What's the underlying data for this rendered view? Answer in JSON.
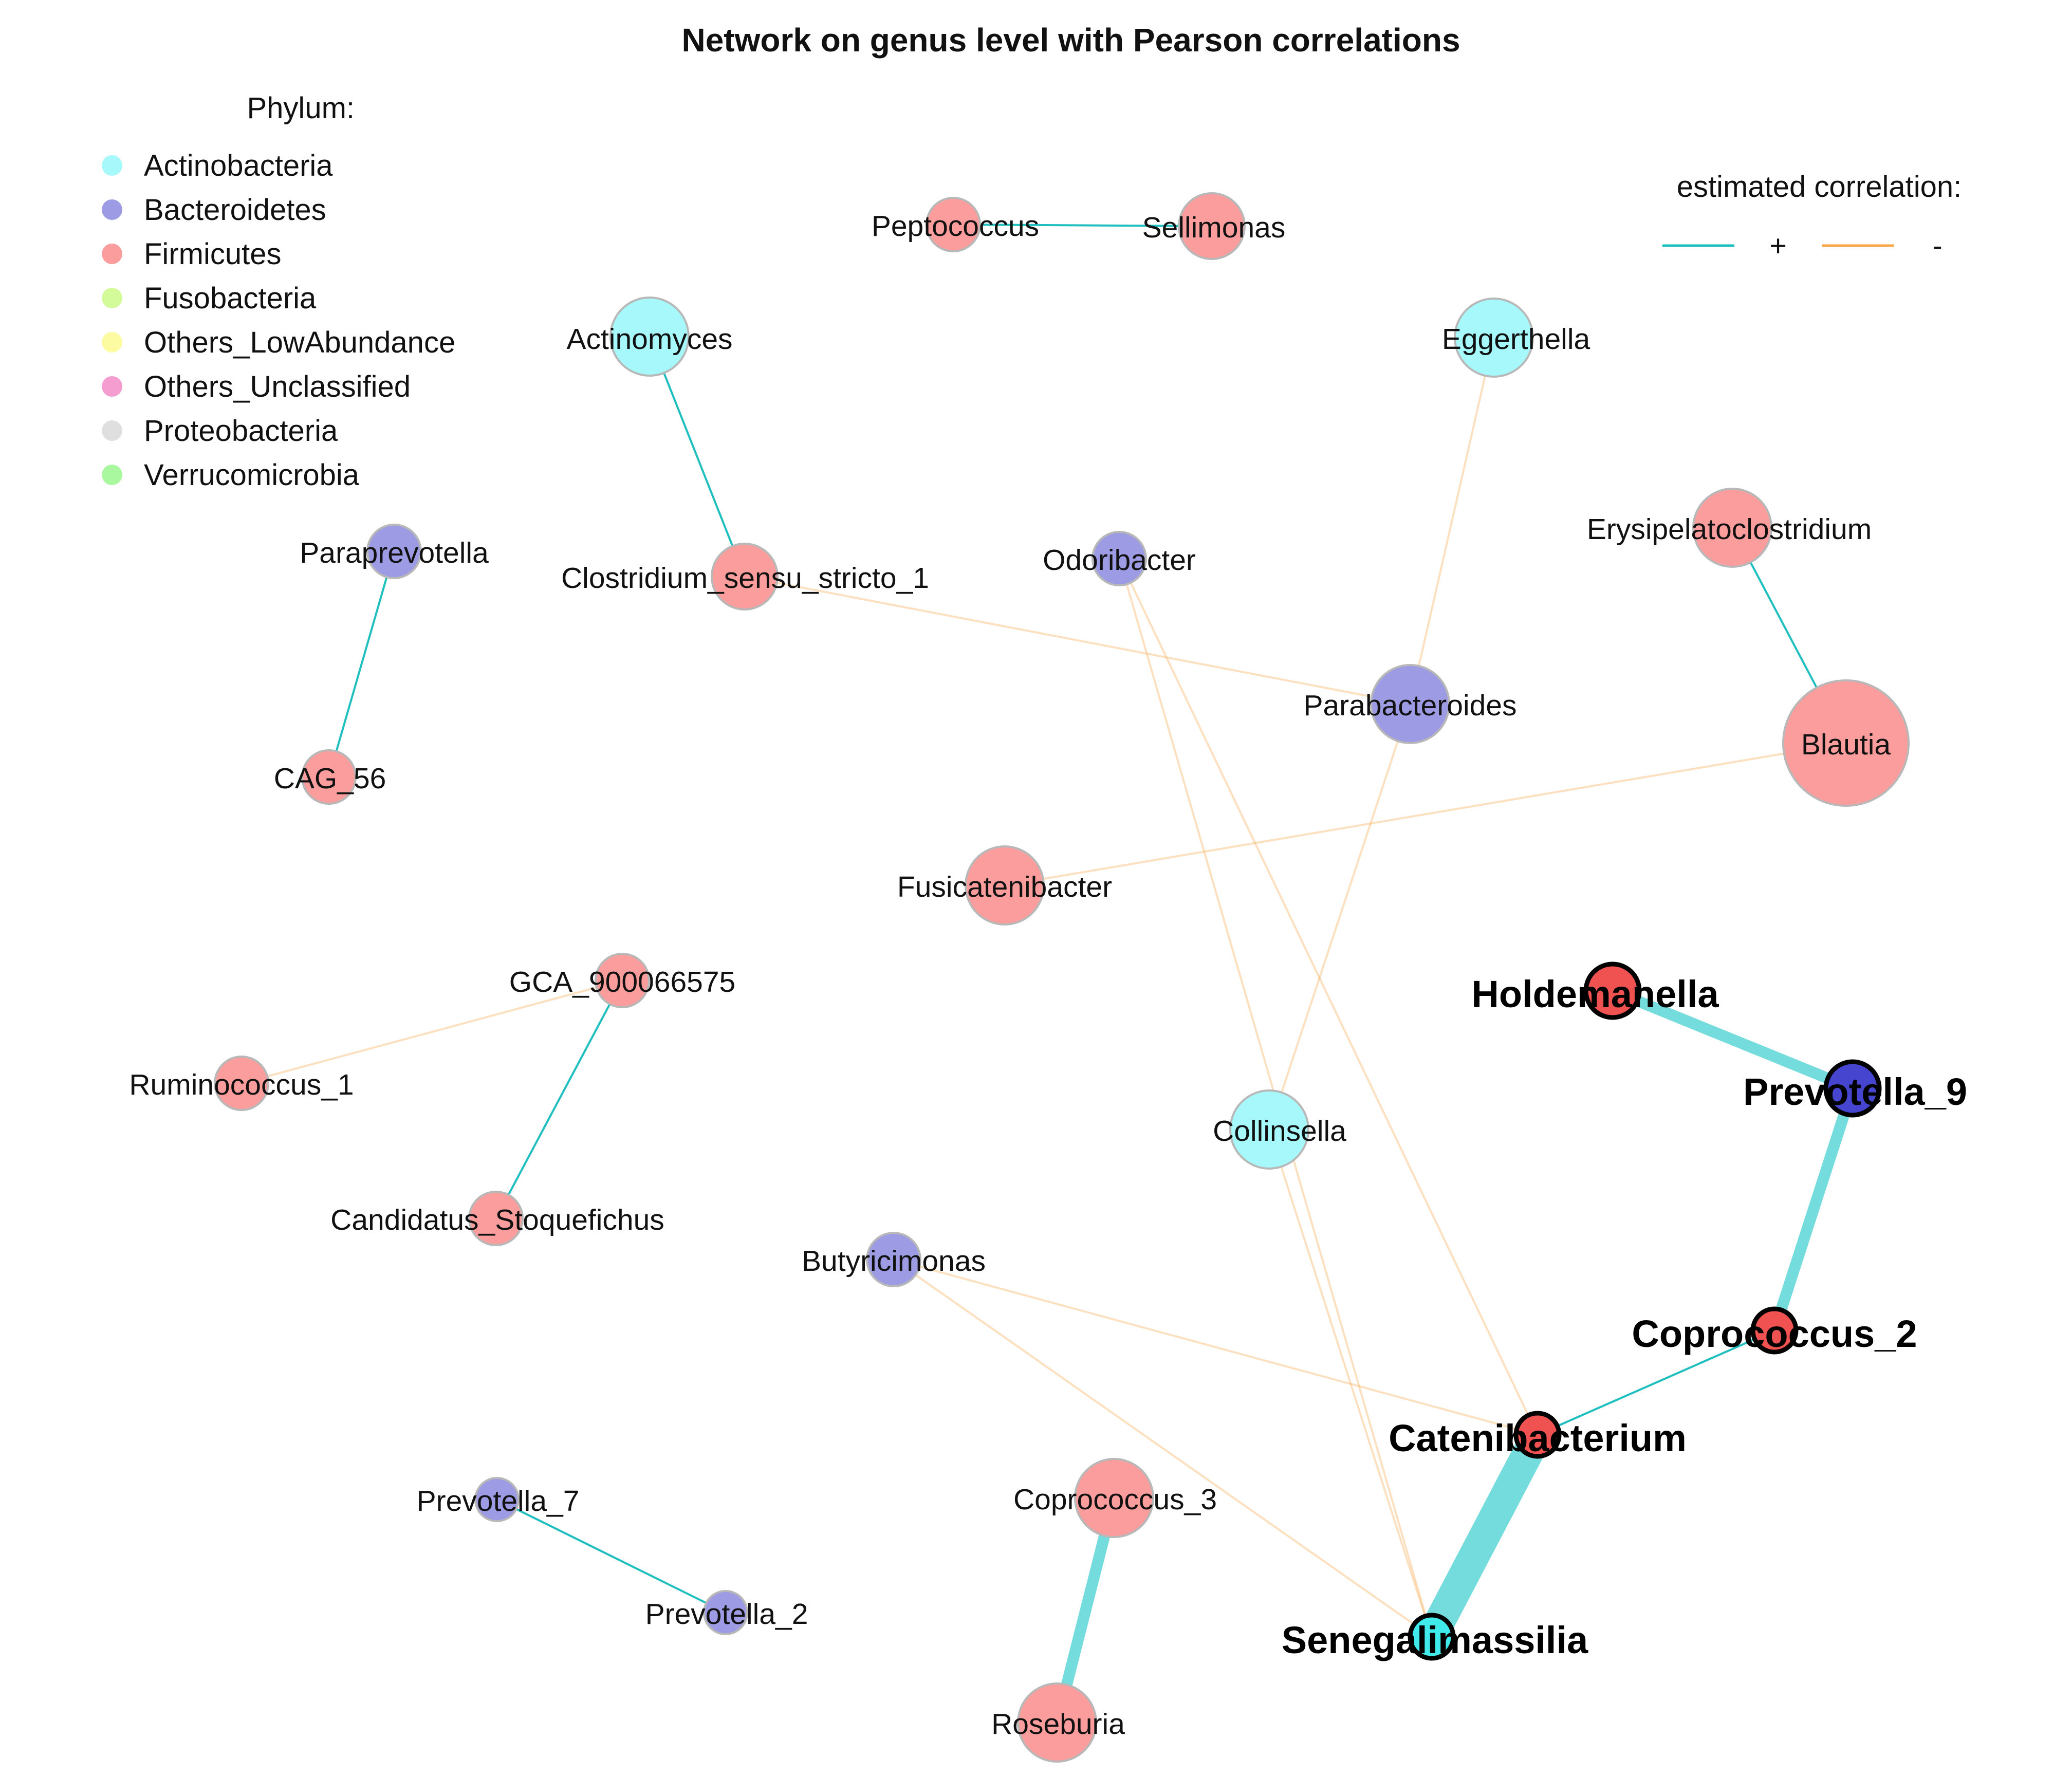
{
  "title": "Network on genus level with Pearson correlations",
  "phylum_legend": {
    "heading": "Phylum:",
    "items": [
      {
        "name": "Actinobacteria",
        "color": "#a6f8fb"
      },
      {
        "name": "Bacteroidetes",
        "color": "#9c9be3"
      },
      {
        "name": "Firmicutes",
        "color": "#fa9d9c"
      },
      {
        "name": "Fusobacteria",
        "color": "#d4fb9a"
      },
      {
        "name": "Others_LowAbundance",
        "color": "#fcfba2"
      },
      {
        "name": "Others_Unclassified",
        "color": "#f59cd0"
      },
      {
        "name": "Proteobacteria",
        "color": "#dfdfdf"
      },
      {
        "name": "Verrucomicrobia",
        "color": "#a9f79e"
      }
    ]
  },
  "correlation_legend": {
    "heading": "estimated correlation:",
    "positive": {
      "label": "+",
      "color": "#1fbfbf"
    },
    "negative": {
      "label": "-",
      "color": "#f7a74a"
    }
  },
  "nodes": [
    {
      "id": "Peptococcus",
      "label": "Peptococcus",
      "phylum": "Firmicutes",
      "size": "small",
      "hub": false
    },
    {
      "id": "Sellimonas",
      "label": "Sellimonas",
      "phylum": "Firmicutes",
      "size": "medium",
      "hub": false
    },
    {
      "id": "Actinomyces",
      "label": "Actinomyces",
      "phylum": "Actinobacteria",
      "size": "large",
      "hub": false
    },
    {
      "id": "Eggerthella",
      "label": "Eggerthella",
      "phylum": "Actinobacteria",
      "size": "large",
      "hub": false
    },
    {
      "id": "Paraprevotella",
      "label": "Paraprevotella",
      "phylum": "Bacteroidetes",
      "size": "small",
      "hub": false
    },
    {
      "id": "Clostridium_sensu_stricto_1",
      "label": "Clostridium_sensu_stricto_1",
      "phylum": "Firmicutes",
      "size": "medium",
      "hub": false
    },
    {
      "id": "Odoribacter",
      "label": "Odoribacter",
      "phylum": "Bacteroidetes",
      "size": "small",
      "hub": false
    },
    {
      "id": "Erysipelatoclostridium",
      "label": "Erysipelatoclostridium",
      "phylum": "Firmicutes",
      "size": "large",
      "hub": false
    },
    {
      "id": "Parabacteroides",
      "label": "Parabacteroides",
      "phylum": "Bacteroidetes",
      "size": "large",
      "hub": false
    },
    {
      "id": "Blautia",
      "label": "Blautia",
      "phylum": "Firmicutes",
      "size": "xlarge",
      "hub": false
    },
    {
      "id": "CAG_56",
      "label": "CAG_56",
      "phylum": "Firmicutes",
      "size": "small",
      "hub": false
    },
    {
      "id": "Fusicatenibacter",
      "label": "Fusicatenibacter",
      "phylum": "Firmicutes",
      "size": "large",
      "hub": false
    },
    {
      "id": "GCA_900066575",
      "label": "GCA_900066575",
      "phylum": "Firmicutes",
      "size": "small",
      "hub": false
    },
    {
      "id": "Holdemanella",
      "label": "Holdemanella",
      "phylum": "Firmicutes",
      "size": "small",
      "hub": true
    },
    {
      "id": "Ruminococcus_1",
      "label": "Ruminococcus_1",
      "phylum": "Firmicutes",
      "size": "small",
      "hub": false
    },
    {
      "id": "Prevotella_9",
      "label": "Prevotella_9",
      "phylum": "Bacteroidetes",
      "size": "small",
      "hub": true
    },
    {
      "id": "Collinsella",
      "label": "Collinsella",
      "phylum": "Actinobacteria",
      "size": "large",
      "hub": false
    },
    {
      "id": "Candidatus_Stoquefichus",
      "label": "Candidatus_Stoquefichus",
      "phylum": "Firmicutes",
      "size": "small",
      "hub": false
    },
    {
      "id": "Butyricimonas",
      "label": "Butyricimonas",
      "phylum": "Bacteroidetes",
      "size": "small",
      "hub": false
    },
    {
      "id": "Coprococcus_2",
      "label": "Coprococcus_2",
      "phylum": "Firmicutes",
      "size": "tiny",
      "hub": true
    },
    {
      "id": "Catenibacterium",
      "label": "Catenibacterium",
      "phylum": "Firmicutes",
      "size": "tiny",
      "hub": true
    },
    {
      "id": "Prevotella_7",
      "label": "Prevotella_7",
      "phylum": "Bacteroidetes",
      "size": "tiny",
      "hub": false
    },
    {
      "id": "Coprococcus_3",
      "label": "Coprococcus_3",
      "phylum": "Firmicutes",
      "size": "large",
      "hub": false
    },
    {
      "id": "Prevotella_2",
      "label": "Prevotella_2",
      "phylum": "Bacteroidetes",
      "size": "tiny",
      "hub": false
    },
    {
      "id": "Senegalimassilia",
      "label": "Senegalimassilia",
      "phylum": "Actinobacteria",
      "size": "tiny",
      "hub": true
    },
    {
      "id": "Roseburia",
      "label": "Roseburia",
      "phylum": "Firmicutes",
      "size": "large",
      "hub": false
    }
  ],
  "edges": [
    {
      "source": "Peptococcus",
      "target": "Sellimonas",
      "sign": "+",
      "strength": "weak"
    },
    {
      "source": "Actinomyces",
      "target": "Clostridium_sensu_stricto_1",
      "sign": "+",
      "strength": "weak"
    },
    {
      "source": "Paraprevotella",
      "target": "CAG_56",
      "sign": "+",
      "strength": "weak"
    },
    {
      "source": "Erysipelatoclostridium",
      "target": "Blautia",
      "sign": "+",
      "strength": "weak"
    },
    {
      "source": "GCA_900066575",
      "target": "Candidatus_Stoquefichus",
      "sign": "+",
      "strength": "weak"
    },
    {
      "source": "Prevotella_7",
      "target": "Prevotella_2",
      "sign": "+",
      "strength": "weak"
    },
    {
      "source": "Coprococcus_2",
      "target": "Catenibacterium",
      "sign": "+",
      "strength": "weak"
    },
    {
      "source": "Holdemanella",
      "target": "Prevotella_9",
      "sign": "+",
      "strength": "strong"
    },
    {
      "source": "Prevotella_9",
      "target": "Coprococcus_2",
      "sign": "+",
      "strength": "strong"
    },
    {
      "source": "Coprococcus_3",
      "target": "Roseburia",
      "sign": "+",
      "strength": "strong"
    },
    {
      "source": "Catenibacterium",
      "target": "Senegalimassilia",
      "sign": "+",
      "strength": "very_strong"
    },
    {
      "source": "Clostridium_sensu_stricto_1",
      "target": "Parabacteroides",
      "sign": "-",
      "strength": "weak"
    },
    {
      "source": "Eggerthella",
      "target": "Parabacteroides",
      "sign": "-",
      "strength": "weak"
    },
    {
      "source": "Parabacteroides",
      "target": "Collinsella",
      "sign": "-",
      "strength": "weak"
    },
    {
      "source": "Blautia",
      "target": "Fusicatenibacter",
      "sign": "-",
      "strength": "weak"
    },
    {
      "source": "GCA_900066575",
      "target": "Ruminococcus_1",
      "sign": "-",
      "strength": "weak"
    },
    {
      "source": "Odoribacter",
      "target": "Catenibacterium",
      "sign": "-",
      "strength": "weak"
    },
    {
      "source": "Odoribacter",
      "target": "Senegalimassilia",
      "sign": "-",
      "strength": "weak"
    },
    {
      "source": "Butyricimonas",
      "target": "Catenibacterium",
      "sign": "-",
      "strength": "weak"
    },
    {
      "source": "Butyricimonas",
      "target": "Senegalimassilia",
      "sign": "-",
      "strength": "weak"
    },
    {
      "source": "Collinsella",
      "target": "Senegalimassilia",
      "sign": "-",
      "strength": "weak"
    }
  ]
}
